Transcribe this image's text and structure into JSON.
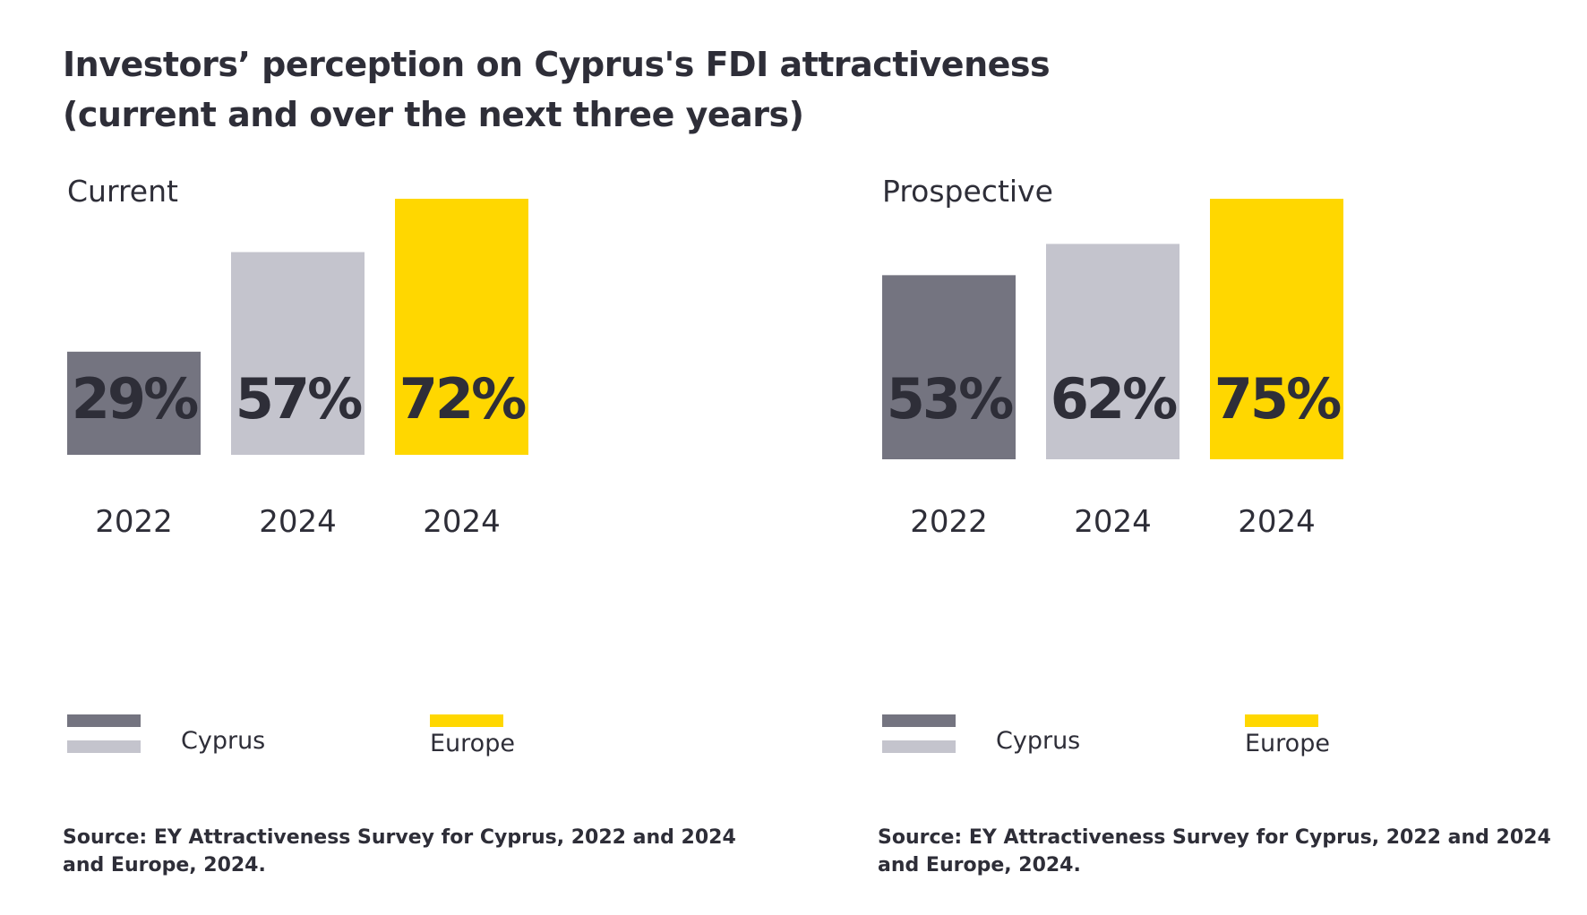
{
  "title": {
    "line1": "Investors’ perception on Cyprus's FDI attractiveness",
    "line2": "(current and over the next three years)"
  },
  "colors": {
    "cyprus_2022": "#747480",
    "cyprus_2024": "#c4c4cd",
    "europe_2024": "#ffd700",
    "text": "#2e2e38"
  },
  "legend": {
    "cyprus_label": "Cyprus",
    "europe_label": "Europe"
  },
  "source": {
    "line1": "Source: EY Attractiveness Survey for Cyprus, 2022 and 2024",
    "line2": "and Europe, 2024."
  },
  "chart_data": [
    {
      "type": "bar",
      "title": "Current",
      "categories": [
        "2022",
        "2024",
        "2024"
      ],
      "series_names": [
        "Cyprus",
        "Cyprus",
        "Europe"
      ],
      "values": [
        29,
        57,
        72
      ],
      "value_labels": [
        "29%",
        "57%",
        "72%"
      ],
      "bar_colors": [
        "#747480",
        "#c4c4cd",
        "#ffd700"
      ],
      "unit": "%",
      "ylim": [
        0,
        72
      ]
    },
    {
      "type": "bar",
      "title": "Prospective",
      "categories": [
        "2022",
        "2024",
        "2024"
      ],
      "series_names": [
        "Cyprus",
        "Cyprus",
        "Europe"
      ],
      "values": [
        53,
        62,
        75
      ],
      "value_labels": [
        "53%",
        "62%",
        "75%"
      ],
      "bar_colors": [
        "#747480",
        "#c4c4cd",
        "#ffd700"
      ],
      "unit": "%",
      "ylim": [
        0,
        75
      ]
    }
  ]
}
